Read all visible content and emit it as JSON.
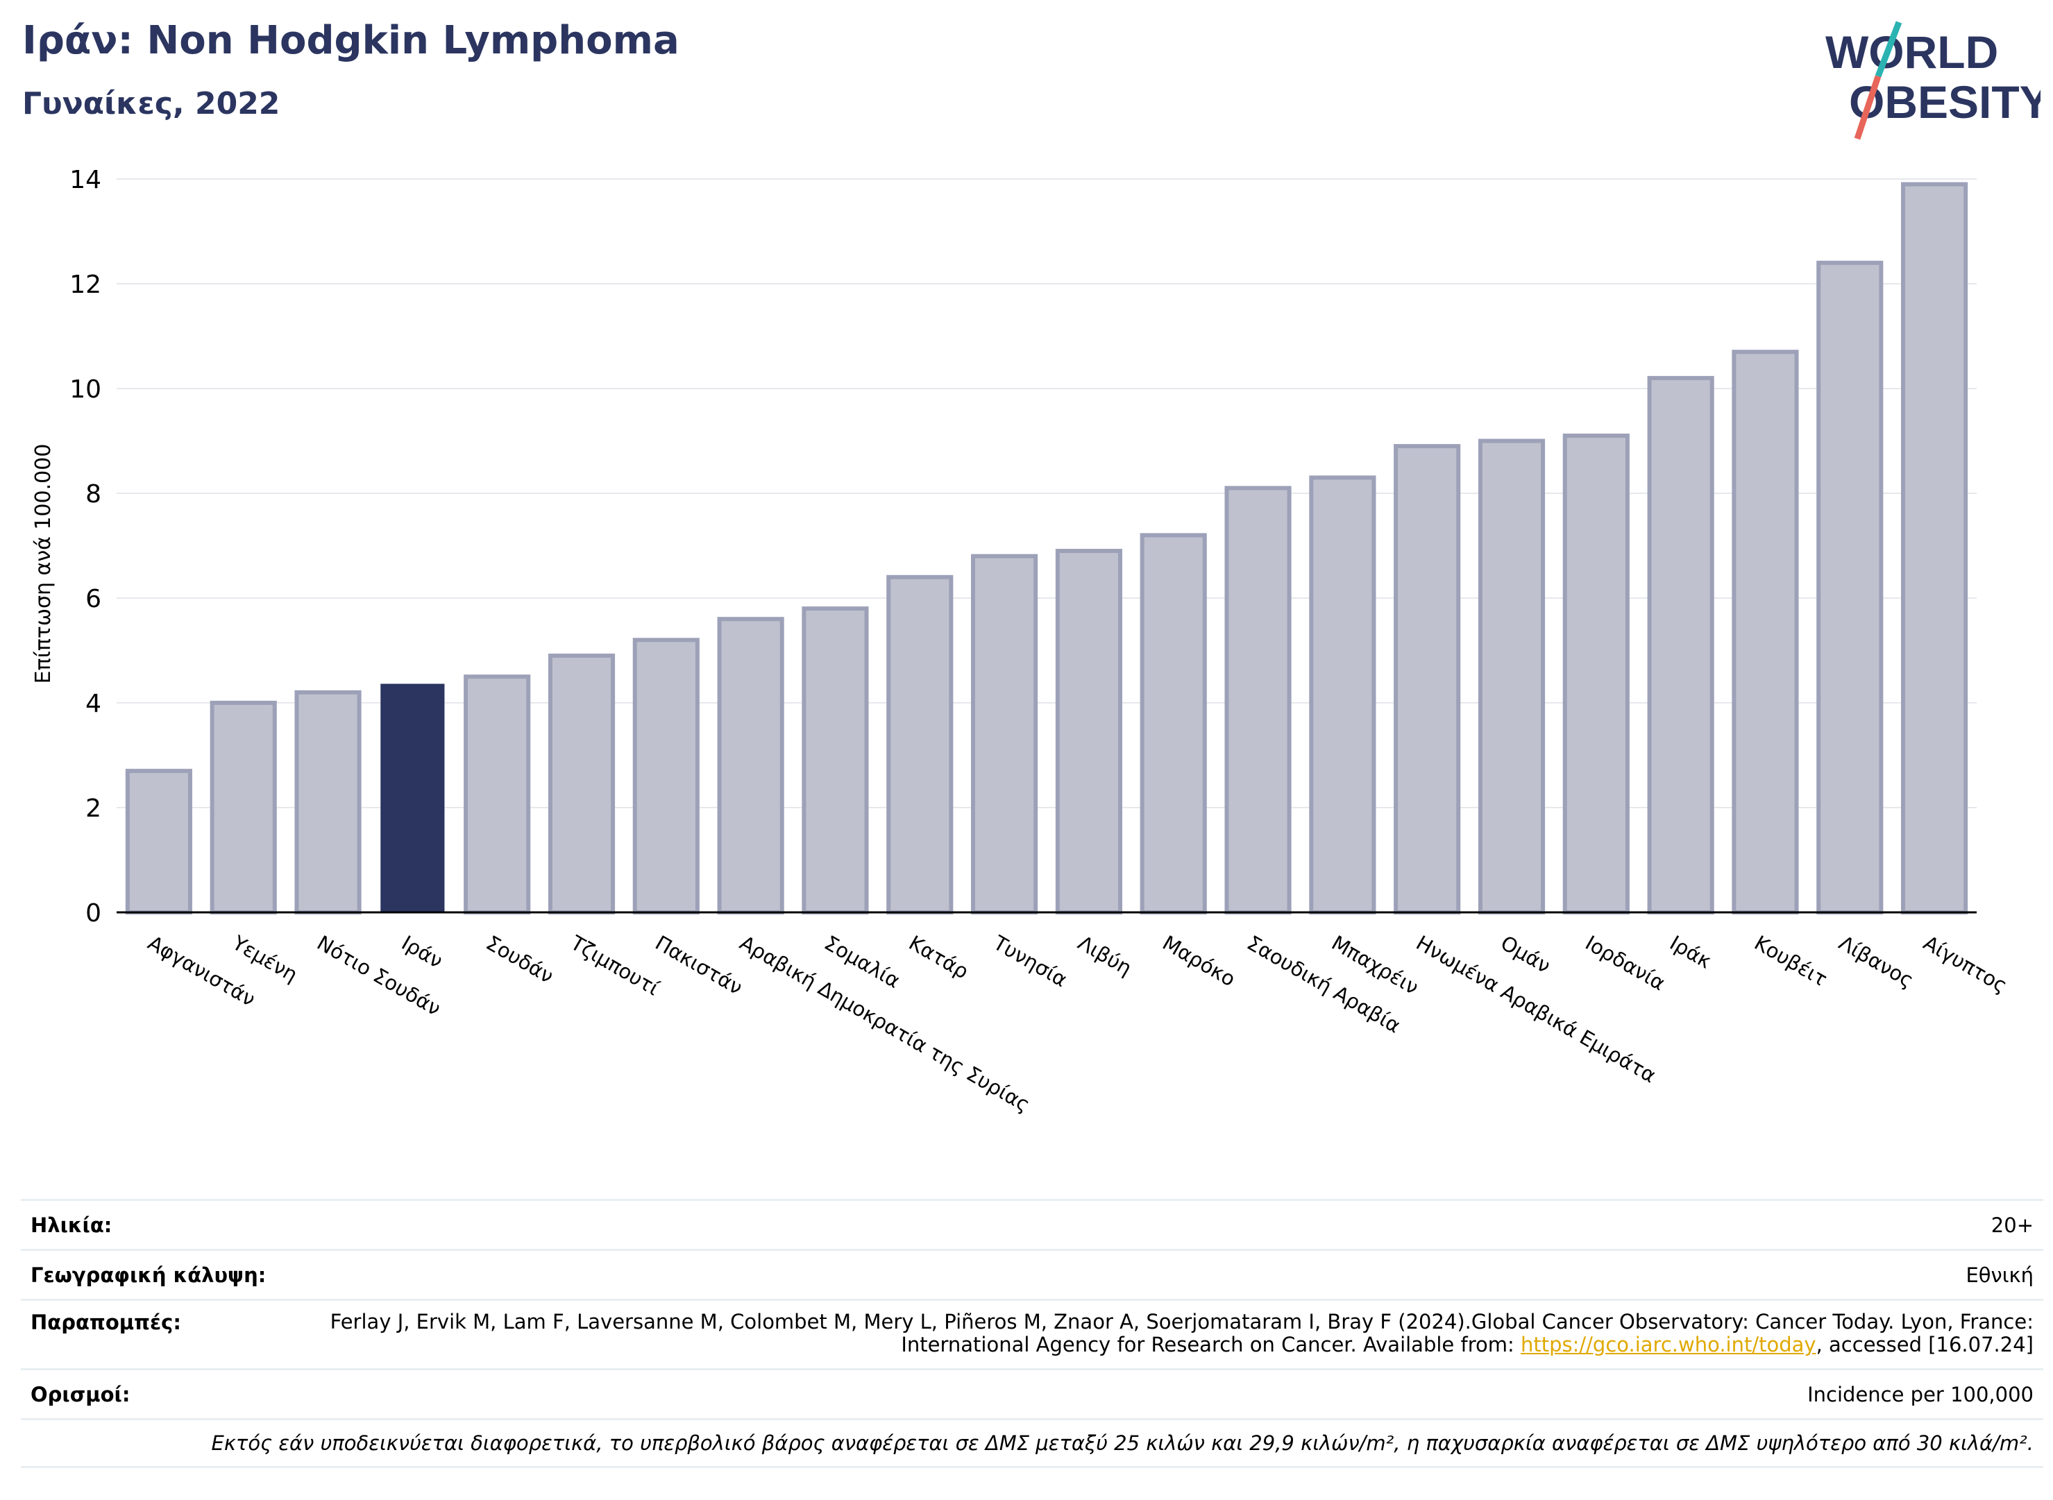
{
  "header": {
    "title": "Ιράν: Non Hodgkin Lymphoma",
    "subtitle": "Γυναίκες, 2022"
  },
  "logo": {
    "line1": "WORLD",
    "line2": "OBESITY",
    "colors": {
      "text": "#2b3560",
      "slash_teal": "#2bb3b1",
      "slash_red": "#e8655a"
    }
  },
  "chart_data": {
    "type": "bar",
    "ylabel": "Επίπτωση ανά 100.000",
    "ylim": [
      0,
      14
    ],
    "yticks": [
      0,
      2,
      4,
      6,
      8,
      10,
      12,
      14
    ],
    "grid": true,
    "highlight": "Ιράν",
    "colors": {
      "bar": "#bfc1ce",
      "bar_edge": "#9da1b8",
      "highlight": "#2b3560",
      "grid": "#e6e8ec"
    },
    "categories": [
      "Αφγανιστάν",
      "Υεμένη",
      "Νότιο Σουδάν",
      "Ιράν",
      "Σουδάν",
      "Τζιμπουτί",
      "Πακιστάν",
      "Αραβική Δημοκρατία της Συρίας",
      "Σομαλία",
      "Κατάρ",
      "Τυνησία",
      "Λιβύη",
      "Μαρόκο",
      "Σαουδική Αραβία",
      "Μπαχρέιν",
      "Ηνωμένα Αραβικά Εμιράτα",
      "Ομάν",
      "Ιορδανία",
      "Ιράκ",
      "Κουβέιτ",
      "Λίβανος",
      "Αίγυπτος"
    ],
    "values": [
      2.7,
      4.0,
      4.2,
      4.35,
      4.5,
      4.9,
      5.2,
      5.6,
      5.8,
      6.4,
      6.8,
      6.9,
      7.2,
      8.1,
      8.3,
      8.9,
      9.0,
      9.1,
      10.2,
      10.7,
      12.4,
      13.9
    ]
  },
  "meta": {
    "age_label": "Ηλικία:",
    "age_value": "20+",
    "geo_label": "Γεωγραφική κάλυψη:",
    "geo_value": "Εθνική",
    "ref_label": "Παραπομπές:",
    "ref_text_1": "Ferlay J, Ervik M, Lam F, Laversanne M, Colombet M, Mery L, Piñeros M, Znaor A, Soerjomataram I, Bray F (2024).Global Cancer Observatory: Cancer Today. Lyon, France: International Agency for Research on Cancer. Available from: ",
    "ref_link": "https://gco.iarc.who.int/today",
    "ref_text_2": ", accessed [16.07.24]",
    "def_label": "Ορισμοί:",
    "def_value": "Incidence per 100,000",
    "note": "Εκτός εάν υποδεικνύεται διαφορετικά, το υπερβολικό βάρος αναφέρεται σε ΔΜΣ μεταξύ 25 κιλών και 29,9 κιλών/m², η παχυσαρκία αναφέρεται σε ΔΜΣ υψηλότερο από 30 κιλά/m²."
  }
}
